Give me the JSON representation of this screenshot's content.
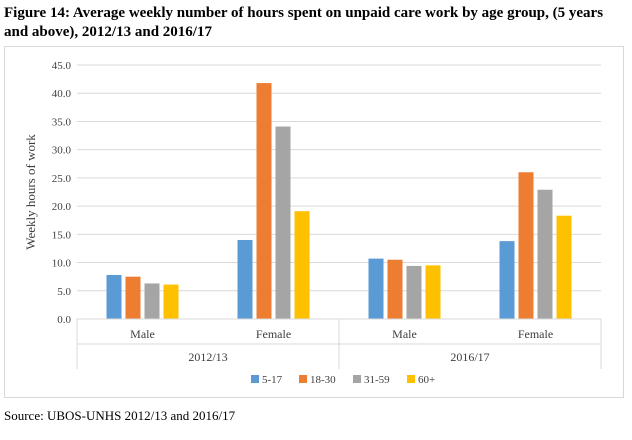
{
  "figure": {
    "title": "Figure 14: Average weekly number of hours spent on unpaid care work by age group, (5 years and above), 2012/13 and 2016/17",
    "source": "Source: UBOS-UNHS 2012/13 and 2016/17"
  },
  "chart_data": {
    "type": "bar",
    "ylabel": "Weekly hours of work",
    "ylim": [
      0,
      45
    ],
    "yticks": [
      "0.0",
      "5.0",
      "10.0",
      "15.0",
      "20.0",
      "25.0",
      "30.0",
      "35.0",
      "40.0",
      "45.0"
    ],
    "grid": true,
    "legend_position": "bottom",
    "groups": [
      {
        "label": "2012/13",
        "categories": [
          "Male",
          "Female"
        ]
      },
      {
        "label": "2016/17",
        "categories": [
          "Male",
          "Female"
        ]
      }
    ],
    "series": [
      {
        "name": "5-17",
        "color": "#5b9bd5",
        "values": [
          [
            7.8,
            14.0
          ],
          [
            10.7,
            13.8
          ]
        ]
      },
      {
        "name": "18-30",
        "color": "#ed7d31",
        "values": [
          [
            7.5,
            41.8
          ],
          [
            10.5,
            26.0
          ]
        ]
      },
      {
        "name": "31-59",
        "color": "#a5a5a5",
        "values": [
          [
            6.3,
            34.1
          ],
          [
            9.4,
            22.9
          ]
        ]
      },
      {
        "name": "60+",
        "color": "#ffc000",
        "values": [
          [
            6.1,
            19.1
          ],
          [
            9.5,
            18.3
          ]
        ]
      }
    ],
    "axis_color": "#d9d9d9",
    "grid_color": "#d9d9d9"
  }
}
